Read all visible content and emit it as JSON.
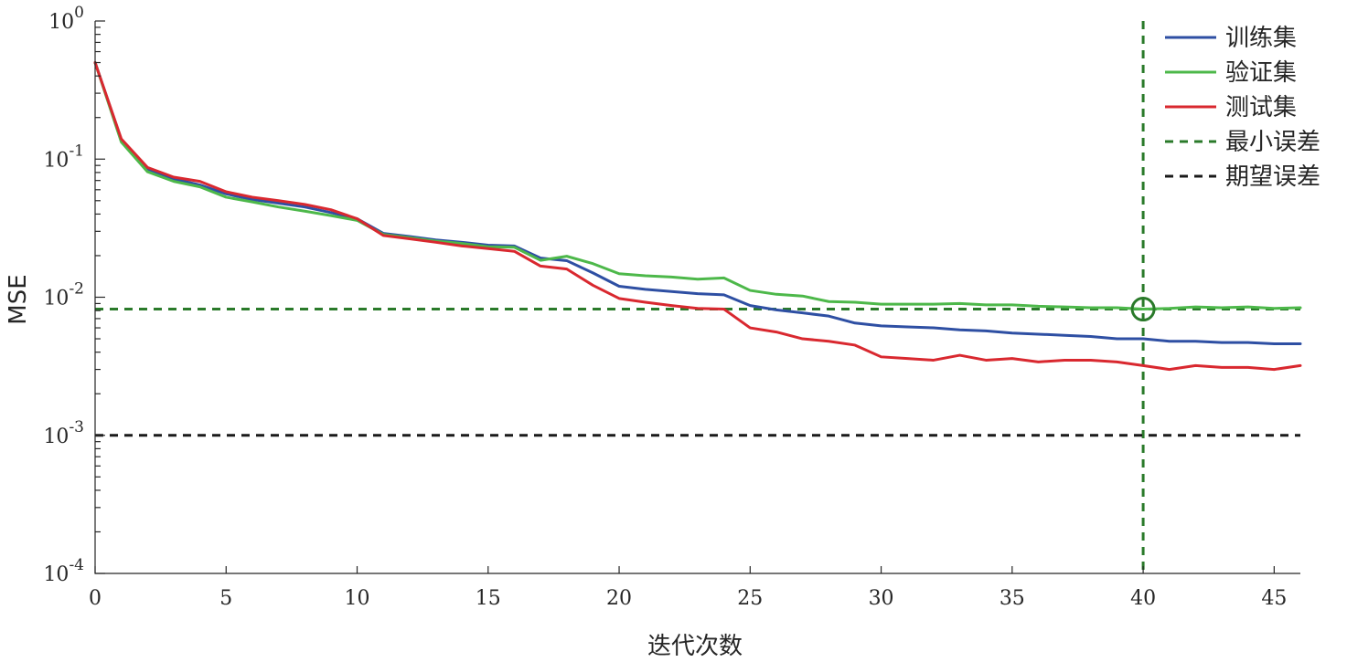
{
  "chart_data": {
    "type": "line",
    "title": "",
    "xlabel": "迭代次数",
    "ylabel": "MSE",
    "xlim": [
      0,
      46
    ],
    "ylim": [
      0.0001,
      1
    ],
    "yscale": "log",
    "grid": false,
    "legend_position": "top-right",
    "x_ticks": [
      0,
      5,
      10,
      15,
      20,
      25,
      30,
      35,
      40,
      45
    ],
    "x_tick_labels": [
      "0",
      "5",
      "10",
      "15",
      "20",
      "25",
      "30",
      "35",
      "40",
      "45"
    ],
    "y_ticks": [
      {
        "value": 1,
        "base": "10",
        "exp": "0"
      },
      {
        "value": 0.1,
        "base": "10",
        "exp": "-1"
      },
      {
        "value": 0.01,
        "base": "10",
        "exp": "-2"
      },
      {
        "value": 0.001,
        "base": "10",
        "exp": "-3"
      },
      {
        "value": 0.0001,
        "base": "10",
        "exp": "-4"
      }
    ],
    "x": [
      0,
      1,
      2,
      3,
      4,
      5,
      6,
      7,
      8,
      9,
      10,
      11,
      12,
      13,
      14,
      15,
      16,
      17,
      18,
      19,
      20,
      21,
      22,
      23,
      24,
      25,
      26,
      27,
      28,
      29,
      30,
      31,
      32,
      33,
      34,
      35,
      36,
      37,
      38,
      39,
      40,
      41,
      42,
      43,
      44,
      45,
      46
    ],
    "series": [
      {
        "name": "训练集",
        "color": "#2e4fa3",
        "style": "solid",
        "values": [
          0.5,
          0.138,
          0.085,
          0.072,
          0.065,
          0.056,
          0.051,
          0.048,
          0.045,
          0.041,
          0.037,
          0.029,
          0.0275,
          0.026,
          0.025,
          0.0238,
          0.0235,
          0.0192,
          0.0184,
          0.015,
          0.012,
          0.0114,
          0.011,
          0.0106,
          0.0104,
          0.0087,
          0.0081,
          0.0077,
          0.0073,
          0.0065,
          0.0062,
          0.0061,
          0.006,
          0.0058,
          0.0057,
          0.0055,
          0.0054,
          0.0053,
          0.0052,
          0.005,
          0.005,
          0.0048,
          0.0048,
          0.0047,
          0.0047,
          0.0046,
          0.0046
        ]
      },
      {
        "name": "验证集",
        "color": "#4db84a",
        "style": "solid",
        "values": [
          0.5,
          0.133,
          0.081,
          0.069,
          0.063,
          0.053,
          0.049,
          0.045,
          0.042,
          0.039,
          0.036,
          0.0285,
          0.027,
          0.0255,
          0.0245,
          0.0232,
          0.023,
          0.0185,
          0.0198,
          0.0175,
          0.0148,
          0.0143,
          0.014,
          0.0135,
          0.0138,
          0.0112,
          0.0105,
          0.0102,
          0.0093,
          0.0092,
          0.0089,
          0.0089,
          0.0089,
          0.009,
          0.0088,
          0.0088,
          0.0086,
          0.0085,
          0.0084,
          0.0084,
          0.0082,
          0.0083,
          0.0085,
          0.0084,
          0.0085,
          0.0083,
          0.0084
        ]
      },
      {
        "name": "测试集",
        "color": "#d9282f",
        "style": "solid",
        "values": [
          0.5,
          0.14,
          0.087,
          0.074,
          0.069,
          0.058,
          0.053,
          0.05,
          0.047,
          0.043,
          0.037,
          0.028,
          0.0265,
          0.025,
          0.0235,
          0.0225,
          0.0215,
          0.0168,
          0.016,
          0.0122,
          0.0098,
          0.0092,
          0.0087,
          0.0083,
          0.0082,
          0.006,
          0.0056,
          0.005,
          0.0048,
          0.0045,
          0.0037,
          0.0036,
          0.0035,
          0.0038,
          0.0035,
          0.0036,
          0.0034,
          0.0035,
          0.0035,
          0.0034,
          0.0032,
          0.003,
          0.0032,
          0.0031,
          0.0031,
          0.003,
          0.0032
        ]
      }
    ],
    "reference_lines": [
      {
        "name": "最小误差",
        "color": "#2a7a2a",
        "style": "dashed",
        "orientation": "horizontal",
        "y": 0.0082
      },
      {
        "name": "最小误差",
        "color": "#2a7a2a",
        "style": "dashed",
        "orientation": "vertical",
        "x": 40
      },
      {
        "name": "期望误差",
        "color": "#1a1a1a",
        "style": "dashed",
        "orientation": "horizontal",
        "y": 0.001
      }
    ],
    "markers": [
      {
        "x": 40,
        "y": 0.0082,
        "shape": "circle",
        "color": "#2a7a2a"
      }
    ],
    "legend": [
      {
        "label": "训练集",
        "color": "#2e4fa3",
        "style": "solid"
      },
      {
        "label": "验证集",
        "color": "#4db84a",
        "style": "solid"
      },
      {
        "label": "测试集",
        "color": "#d9282f",
        "style": "solid"
      },
      {
        "label": "最小误差",
        "color": "#2a7a2a",
        "style": "dashed"
      },
      {
        "label": "期望误差",
        "color": "#1a1a1a",
        "style": "dashed"
      }
    ]
  }
}
